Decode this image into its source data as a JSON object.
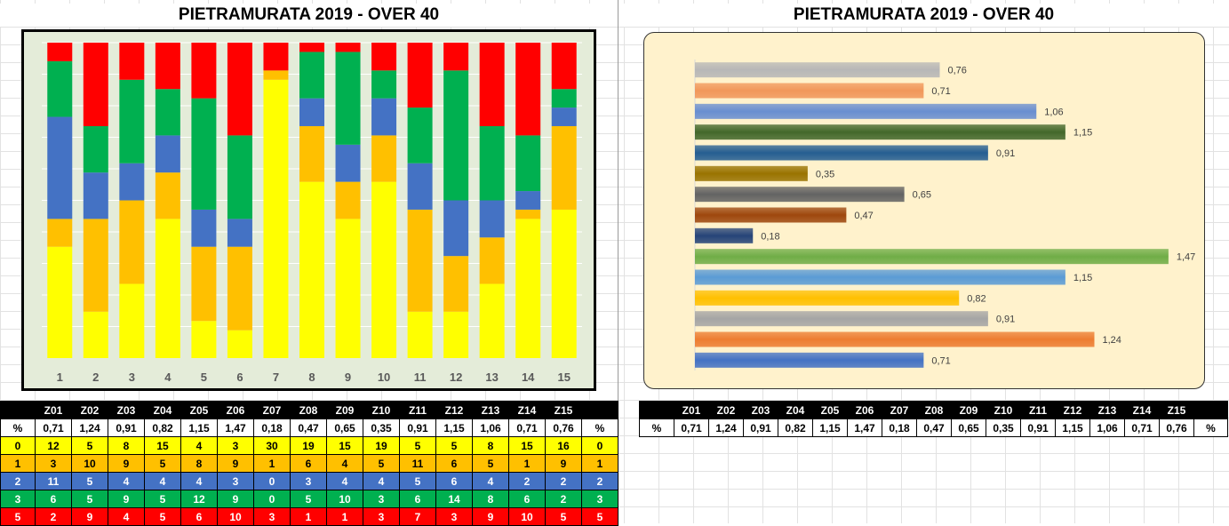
{
  "left": {
    "title": "PIETRAMURATA 2019 - OVER 40"
  },
  "right": {
    "title": "PIETRAMURATA 2019 - OVER 40"
  },
  "table": {
    "codes": [
      "Z01",
      "Z02",
      "Z03",
      "Z04",
      "Z05",
      "Z06",
      "Z07",
      "Z08",
      "Z09",
      "Z10",
      "Z11",
      "Z12",
      "Z13",
      "Z14",
      "Z15"
    ],
    "pct_label": "%",
    "pct": [
      "0,71",
      "1,24",
      "0,91",
      "0,82",
      "1,15",
      "1,47",
      "0,18",
      "0,47",
      "0,65",
      "0,35",
      "0,91",
      "1,15",
      "1,06",
      "0,71",
      "0,76"
    ],
    "rows": [
      {
        "label": "0",
        "values": [
          12,
          5,
          8,
          15,
          4,
          3,
          30,
          19,
          15,
          19,
          5,
          5,
          8,
          15,
          16
        ]
      },
      {
        "label": "1",
        "values": [
          3,
          10,
          9,
          5,
          8,
          9,
          1,
          6,
          4,
          5,
          11,
          6,
          5,
          1,
          9
        ]
      },
      {
        "label": "2",
        "values": [
          11,
          5,
          4,
          4,
          4,
          3,
          0,
          3,
          4,
          4,
          5,
          6,
          4,
          2,
          2
        ]
      },
      {
        "label": "3",
        "values": [
          6,
          5,
          9,
          5,
          12,
          9,
          0,
          5,
          10,
          3,
          6,
          14,
          8,
          6,
          2
        ]
      },
      {
        "label": "5",
        "values": [
          2,
          9,
          4,
          5,
          6,
          10,
          3,
          1,
          1,
          3,
          7,
          3,
          9,
          10,
          5
        ]
      }
    ]
  },
  "chart_data": [
    {
      "type": "bar",
      "stacked": true,
      "orientation": "vertical",
      "percent_stacked": true,
      "categories": [
        "1",
        "2",
        "3",
        "4",
        "5",
        "6",
        "7",
        "8",
        "9",
        "10",
        "11",
        "12",
        "13",
        "14",
        "15"
      ],
      "series": [
        {
          "color": "#ffff00",
          "values": [
            12,
            5,
            8,
            15,
            4,
            3,
            30,
            19,
            15,
            19,
            5,
            5,
            8,
            15,
            16
          ]
        },
        {
          "color": "#ffc000",
          "values": [
            3,
            10,
            9,
            5,
            8,
            9,
            1,
            6,
            4,
            5,
            11,
            6,
            5,
            1,
            9
          ]
        },
        {
          "color": "#4472c4",
          "values": [
            11,
            5,
            4,
            4,
            4,
            3,
            0,
            3,
            4,
            4,
            5,
            6,
            4,
            2,
            2
          ]
        },
        {
          "color": "#00b050",
          "values": [
            6,
            5,
            9,
            5,
            12,
            9,
            0,
            5,
            10,
            3,
            6,
            14,
            8,
            6,
            2
          ]
        },
        {
          "color": "#ff0000",
          "values": [
            2,
            9,
            4,
            5,
            6,
            10,
            3,
            1,
            1,
            3,
            7,
            3,
            9,
            10,
            5
          ]
        }
      ],
      "grid": true,
      "legend": "none"
    },
    {
      "type": "bar",
      "orientation": "horizontal",
      "order": "bottom-to-top",
      "values": [
        0.71,
        1.24,
        0.91,
        0.82,
        1.15,
        1.47,
        0.18,
        0.47,
        0.65,
        0.35,
        0.91,
        1.15,
        1.06,
        0.71,
        0.76
      ],
      "labels": [
        "0,71",
        "1,24",
        "0,91",
        "0,82",
        "1,15",
        "1,47",
        "0,18",
        "0,47",
        "0,65",
        "0,35",
        "0,91",
        "1,15",
        "1,06",
        "0,71",
        "0,76"
      ],
      "colors": [
        "#4472c4",
        "#ed7d31",
        "#a5a5a5",
        "#ffc000",
        "#5b9bd5",
        "#70ad47",
        "#264478",
        "#9e480e",
        "#636363",
        "#997300",
        "#255e91",
        "#43682b",
        "#698ed0",
        "#f1975a",
        "#b7b7b7"
      ],
      "xlim": [
        0,
        1.6
      ],
      "grid": false,
      "legend": "none"
    }
  ]
}
